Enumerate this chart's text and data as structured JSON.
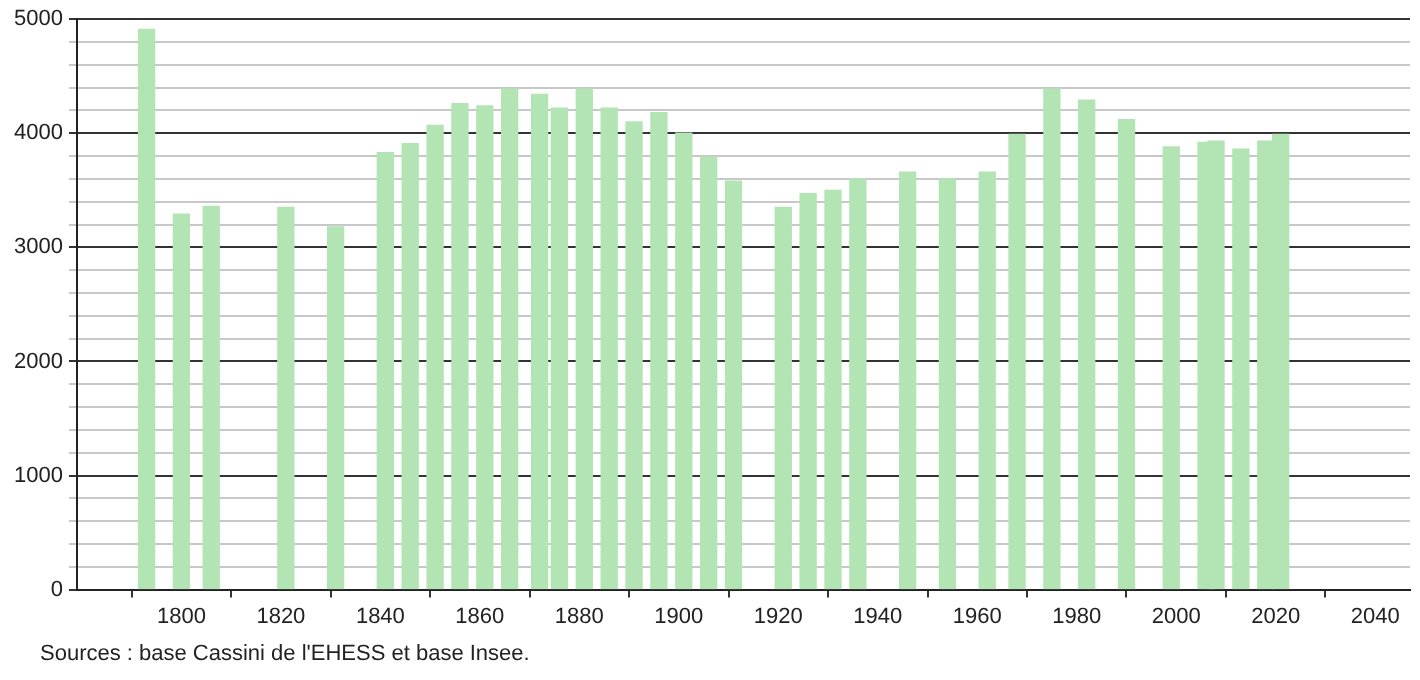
{
  "chart_data": {
    "type": "bar",
    "x": [
      1793,
      1800,
      1806,
      1821,
      1831,
      1841,
      1846,
      1851,
      1856,
      1861,
      1866,
      1872,
      1876,
      1881,
      1886,
      1891,
      1896,
      1901,
      1906,
      1911,
      1921,
      1926,
      1931,
      1936,
      1946,
      1954,
      1962,
      1968,
      1975,
      1982,
      1990,
      1999,
      2006,
      2008,
      2013,
      2018,
      2021
    ],
    "values": [
      4910,
      3290,
      3360,
      3350,
      3180,
      3830,
      3910,
      4070,
      4260,
      4240,
      4390,
      4340,
      4220,
      4390,
      4220,
      4100,
      4180,
      4000,
      3790,
      3580,
      3350,
      3470,
      3500,
      3600,
      3660,
      3600,
      3660,
      3990,
      4390,
      4290,
      4120,
      3880,
      3920,
      3930,
      3860,
      3930,
      3990
    ],
    "color": "#b3e4b3",
    "xlim": [
      1779,
      2047
    ],
    "xticks": [
      1800,
      1820,
      1840,
      1860,
      1880,
      1900,
      1920,
      1940,
      1960,
      1980,
      2000,
      2020,
      2040
    ],
    "ylim": [
      0,
      5000
    ],
    "yticks": [
      0,
      {
        "value": 200,
        "label": null
      },
      {
        "value": 400,
        "label": null
      },
      {
        "value": 600,
        "label": null
      },
      {
        "value": 800,
        "label": null
      },
      1000,
      {
        "value": 1200,
        "label": null
      },
      {
        "value": 1400,
        "label": null
      },
      {
        "value": 1600,
        "label": null
      },
      {
        "value": 1800,
        "label": null
      },
      2000,
      {
        "value": 2200,
        "label": null
      },
      {
        "value": 2400,
        "label": null
      },
      {
        "value": 2600,
        "label": null
      },
      {
        "value": 2800,
        "label": null
      },
      3000,
      {
        "value": 3200,
        "label": null
      },
      {
        "value": 3400,
        "label": null
      },
      {
        "value": 3600,
        "label": null
      },
      {
        "value": 3800,
        "label": null
      },
      4000,
      {
        "value": 4200,
        "label": null
      },
      {
        "value": 4400,
        "label": null
      },
      {
        "value": 4600,
        "label": null
      },
      {
        "value": 4800,
        "label": null
      },
      5000
    ],
    "grid": "y",
    "annotations": [
      "Sources : base Cassini de l'EHESS et base Insee."
    ]
  }
}
